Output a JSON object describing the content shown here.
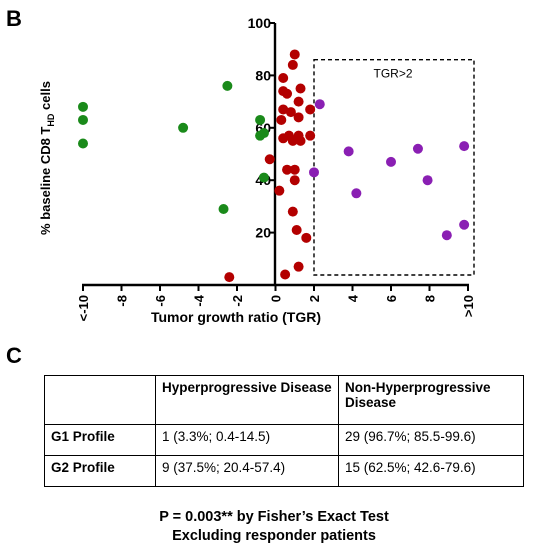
{
  "panels": {
    "chart_label": "B",
    "table_label": "C"
  },
  "chart_data": {
    "type": "scatter",
    "ylabel_main": "% baseline CD8 T",
    "ylabel_sub": "HD",
    "ylabel_tail": " cells",
    "xlabel": "Tumor growth ratio (TGR)",
    "ylim": [
      0,
      100
    ],
    "xlim": [
      -10,
      10
    ],
    "x_ticks": [
      "<-10",
      "-8",
      "-6",
      "-4",
      "-2",
      "0",
      "2",
      "4",
      "6",
      "8",
      ">10"
    ],
    "y_ticks": [
      "20",
      "40",
      "60",
      "80",
      "100"
    ],
    "annotation": "TGR>2",
    "region": {
      "x_min": 2,
      "x_max": 10,
      "y_min": 0,
      "y_max": 86
    },
    "colors": {
      "green": "#1a8a1a",
      "red": "#b30000",
      "purple": "#8a1fb3"
    },
    "series": [
      {
        "color": "green",
        "points": [
          {
            "x": -10,
            "y": 68
          },
          {
            "x": -10,
            "y": 63
          },
          {
            "x": -10,
            "y": 54
          },
          {
            "x": -4.8,
            "y": 60
          },
          {
            "x": -2.5,
            "y": 76
          },
          {
            "x": -2.7,
            "y": 29
          },
          {
            "x": -0.8,
            "y": 63
          },
          {
            "x": -0.8,
            "y": 57
          },
          {
            "x": -0.6,
            "y": 58
          },
          {
            "x": -0.6,
            "y": 41
          }
        ]
      },
      {
        "color": "red",
        "points": [
          {
            "x": -2.4,
            "y": 3
          },
          {
            "x": -0.3,
            "y": 48
          },
          {
            "x": 0.2,
            "y": 36
          },
          {
            "x": 0.4,
            "y": 79
          },
          {
            "x": 0.4,
            "y": 74
          },
          {
            "x": 0.6,
            "y": 73
          },
          {
            "x": 0.4,
            "y": 67
          },
          {
            "x": 0.3,
            "y": 63
          },
          {
            "x": 0.4,
            "y": 56
          },
          {
            "x": 0.6,
            "y": 44
          },
          {
            "x": 0.5,
            "y": 4
          },
          {
            "x": 0.9,
            "y": 84
          },
          {
            "x": 1.0,
            "y": 88
          },
          {
            "x": 0.8,
            "y": 66
          },
          {
            "x": 0.7,
            "y": 57
          },
          {
            "x": 0.9,
            "y": 28
          },
          {
            "x": 1.0,
            "y": 44
          },
          {
            "x": 1.0,
            "y": 40
          },
          {
            "x": 1.1,
            "y": 21
          },
          {
            "x": 1.2,
            "y": 7
          },
          {
            "x": 1.3,
            "y": 75
          },
          {
            "x": 1.2,
            "y": 70
          },
          {
            "x": 1.2,
            "y": 64
          },
          {
            "x": 1.2,
            "y": 57
          },
          {
            "x": 1.3,
            "y": 55
          },
          {
            "x": 1.8,
            "y": 67
          },
          {
            "x": 1.8,
            "y": 57
          },
          {
            "x": 1.6,
            "y": 18
          },
          {
            "x": 0.9,
            "y": 55
          }
        ]
      },
      {
        "color": "purple",
        "points": [
          {
            "x": 2.3,
            "y": 69
          },
          {
            "x": 2.0,
            "y": 43
          },
          {
            "x": 3.8,
            "y": 51
          },
          {
            "x": 4.2,
            "y": 35
          },
          {
            "x": 6.0,
            "y": 47
          },
          {
            "x": 7.4,
            "y": 52
          },
          {
            "x": 7.9,
            "y": 40
          },
          {
            "x": 8.9,
            "y": 19
          },
          {
            "x": 9.8,
            "y": 53
          },
          {
            "x": 9.8,
            "y": 23
          }
        ]
      }
    ]
  },
  "table": {
    "headers": [
      "",
      "Hyperprogressive Disease",
      "Non-Hyperprogressive Disease"
    ],
    "rows": [
      [
        "G1 Profile",
        "1 (3.3%; 0.4-14.5)",
        "29 (96.7%; 85.5-99.6)"
      ],
      [
        "G2 Profile",
        "9 (37.5%; 20.4-57.4)",
        "15 (62.5%; 42.6-79.6)"
      ]
    ]
  },
  "footnote": {
    "line1": "P = 0.003** by Fisher’s Exact Test",
    "line2": "Excluding responder patients"
  }
}
